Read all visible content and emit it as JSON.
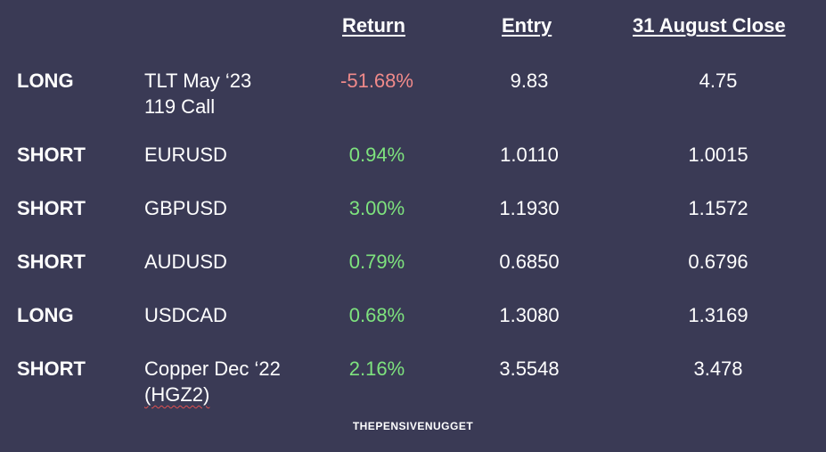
{
  "headers": {
    "return": "Return",
    "entry": "Entry",
    "close": "31 August Close"
  },
  "rows": [
    {
      "direction": "LONG",
      "instrument_line1": "TLT May ‘23",
      "instrument_line2": "119 Call",
      "return": "-51.68%",
      "return_sign": "negative",
      "entry": "9.83",
      "close": "4.75"
    },
    {
      "direction": "SHORT",
      "instrument_line1": "EURUSD",
      "instrument_line2": "",
      "return": "0.94%",
      "return_sign": "positive",
      "entry": "1.0110",
      "close": "1.0015"
    },
    {
      "direction": "SHORT",
      "instrument_line1": "GBPUSD",
      "instrument_line2": "",
      "return": "3.00%",
      "return_sign": "positive",
      "entry": "1.1930",
      "close": "1.1572"
    },
    {
      "direction": "SHORT",
      "instrument_line1": "AUDUSD",
      "instrument_line2": "",
      "return": "0.79%",
      "return_sign": "positive",
      "entry": "0.6850",
      "close": "0.6796"
    },
    {
      "direction": "LONG",
      "instrument_line1": "USDCAD",
      "instrument_line2": "",
      "return": "0.68%",
      "return_sign": "positive",
      "entry": "1.3080",
      "close": "1.3169"
    },
    {
      "direction": "SHORT",
      "instrument_line1": "Copper Dec ‘22",
      "instrument_line2": "(HGZ2)",
      "return": "2.16%",
      "return_sign": "positive",
      "entry": "3.5548",
      "close": "3.478"
    }
  ],
  "watermark": "THEPENSIVENUGGET",
  "colors": {
    "background": "#3a3a55",
    "positive": "#7ee37e",
    "negative": "#f08a8a",
    "text": "#ffffff"
  }
}
